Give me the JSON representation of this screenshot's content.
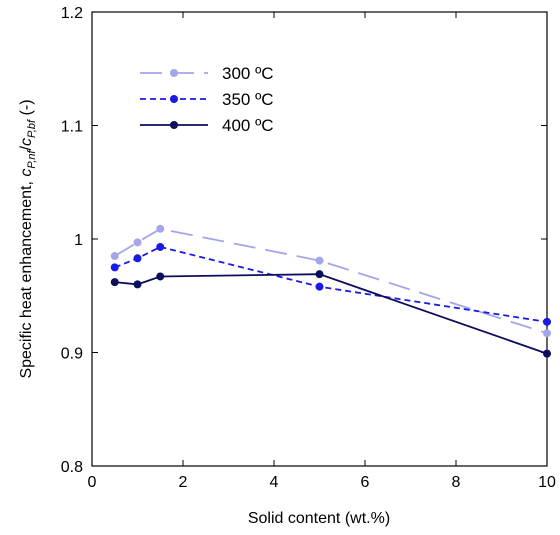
{
  "chart_data": {
    "type": "line",
    "xlabel": "Solid content (wt.%)",
    "ylabel_parts": [
      {
        "t": "Specific heat enhancement, "
      },
      {
        "t": "c",
        "i": true
      },
      {
        "t": "P,nf",
        "i": true,
        "sub": true
      },
      {
        "t": "/"
      },
      {
        "t": "c",
        "i": true
      },
      {
        "t": "P,bf",
        "i": true,
        "sub": true
      },
      {
        "t": " (-)"
      }
    ],
    "xlim": [
      0,
      10
    ],
    "ylim": [
      0.8,
      1.2
    ],
    "xticks": [
      0,
      2,
      4,
      6,
      8,
      10
    ],
    "yticks": [
      0.8,
      0.9,
      1.0,
      1.1,
      1.2
    ],
    "xtick_labels": [
      "0",
      "2",
      "4",
      "6",
      "8",
      "10"
    ],
    "ytick_labels": [
      "0.8",
      "0.9",
      "1",
      "1.1",
      "1.2"
    ],
    "grid": false,
    "legend_position": "top-left",
    "series": [
      {
        "name": "300 ºC",
        "color": "#a3a6e8",
        "dash": "long-dash",
        "x": [
          0.5,
          1.0,
          1.5,
          5.0,
          10.0
        ],
        "y": [
          0.985,
          0.997,
          1.009,
          0.981,
          0.917
        ]
      },
      {
        "name": "350 ºC",
        "color": "#1a1ae6",
        "dash": "short-dash",
        "x": [
          0.5,
          1.0,
          1.5,
          5.0,
          10.0
        ],
        "y": [
          0.975,
          0.983,
          0.993,
          0.958,
          0.927
        ]
      },
      {
        "name": "400 ºC",
        "color": "#0d0d5e",
        "dash": "solid",
        "x": [
          0.5,
          1.0,
          1.5,
          5.0,
          10.0
        ],
        "y": [
          0.962,
          0.96,
          0.967,
          0.969,
          0.899
        ]
      }
    ]
  }
}
